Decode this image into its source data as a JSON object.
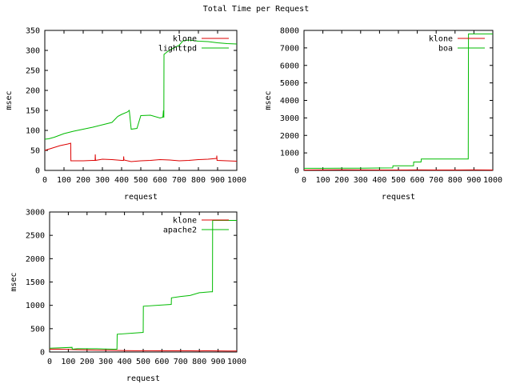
{
  "title": "Total Time per Request",
  "colors": {
    "klone": "#dd0000",
    "other": "#00bb00",
    "frame": "#000000"
  },
  "chart_data": [
    {
      "type": "line",
      "xlabel": "request",
      "ylabel": "msec",
      "xlim": [
        0,
        1000
      ],
      "ylim": [
        0,
        350
      ],
      "xticks": [
        0,
        100,
        200,
        300,
        400,
        500,
        600,
        700,
        800,
        900,
        1000
      ],
      "yticks": [
        0,
        50,
        100,
        150,
        200,
        250,
        300,
        350
      ],
      "legend_position": "top-right",
      "series": [
        {
          "name": "klone",
          "color_key": "klone",
          "x": [
            0,
            20,
            40,
            60,
            80,
            100,
            120,
            135,
            136,
            150,
            200,
            250,
            262,
            263,
            264,
            300,
            350,
            400,
            410,
            411,
            412,
            450,
            500,
            550,
            600,
            650,
            700,
            750,
            800,
            850,
            895,
            896,
            897,
            950,
            1000
          ],
          "y": [
            50,
            53,
            56,
            59,
            62,
            64,
            66,
            68,
            24,
            24,
            24,
            25,
            25,
            40,
            25,
            28,
            27,
            25,
            25,
            35,
            26,
            22,
            24,
            25,
            27,
            26,
            24,
            25,
            27,
            28,
            30,
            37,
            25,
            24,
            23
          ]
        },
        {
          "name": "lighttpd",
          "color_key": "other",
          "x": [
            0,
            20,
            50,
            100,
            150,
            200,
            250,
            300,
            350,
            380,
            400,
            430,
            440,
            450,
            480,
            500,
            550,
            600,
            615,
            618,
            620,
            621,
            650,
            700,
            720,
            750,
            800,
            850,
            900,
            950,
            1000
          ],
          "y": [
            78,
            79,
            83,
            92,
            98,
            103,
            108,
            114,
            120,
            135,
            140,
            146,
            150,
            103,
            105,
            137,
            138,
            131,
            133,
            150,
            132,
            290,
            301,
            313,
            324,
            326,
            323,
            322,
            319,
            317,
            316
          ]
        }
      ]
    },
    {
      "type": "line",
      "xlabel": "request",
      "ylabel": "msec",
      "xlim": [
        0,
        1000
      ],
      "ylim": [
        0,
        8000
      ],
      "xticks": [
        0,
        100,
        200,
        300,
        400,
        500,
        600,
        700,
        800,
        900,
        1000
      ],
      "yticks": [
        0,
        1000,
        2000,
        3000,
        4000,
        5000,
        6000,
        7000,
        8000
      ],
      "legend_position": "top-right",
      "series": [
        {
          "name": "klone",
          "color_key": "klone",
          "x": [
            0,
            100,
            200,
            300,
            400,
            500,
            600,
            700,
            800,
            900,
            1000
          ],
          "y": [
            25,
            28,
            30,
            26,
            24,
            25,
            27,
            25,
            24,
            26,
            25
          ]
        },
        {
          "name": "boa",
          "color_key": "other",
          "x": [
            0,
            100,
            200,
            300,
            400,
            470,
            471,
            580,
            581,
            620,
            621,
            870,
            871,
            1000
          ],
          "y": [
            120,
            120,
            130,
            130,
            135,
            140,
            260,
            260,
            480,
            480,
            650,
            650,
            7800,
            7800
          ]
        }
      ]
    },
    {
      "type": "line",
      "xlabel": "request",
      "ylabel": "msec",
      "xlim": [
        0,
        1000
      ],
      "ylim": [
        0,
        3000
      ],
      "xticks": [
        0,
        100,
        200,
        300,
        400,
        500,
        600,
        700,
        800,
        900,
        1000
      ],
      "yticks": [
        0,
        500,
        1000,
        1500,
        2000,
        2500,
        3000
      ],
      "legend_position": "top-right",
      "series": [
        {
          "name": "klone",
          "color_key": "klone",
          "x": [
            0,
            50,
            100,
            150,
            200,
            250,
            300,
            350,
            400,
            450,
            500,
            550,
            600,
            650,
            700,
            750,
            800,
            850,
            900,
            950,
            1000
          ],
          "y": [
            60,
            62,
            55,
            50,
            45,
            42,
            38,
            35,
            30,
            28,
            27,
            28,
            26,
            25,
            25,
            26,
            24,
            25,
            24,
            23,
            22
          ]
        },
        {
          "name": "apache2",
          "color_key": "other",
          "x": [
            0,
            60,
            120,
            121,
            150,
            200,
            250,
            300,
            340,
            360,
            361,
            500,
            501,
            650,
            651,
            700,
            750,
            800,
            860,
            870,
            871,
            1000
          ],
          "y": [
            80,
            90,
            100,
            60,
            70,
            70,
            70,
            65,
            60,
            60,
            380,
            420,
            980,
            1020,
            1160,
            1190,
            1210,
            1270,
            1290,
            1290,
            2820,
            2820
          ]
        }
      ]
    }
  ]
}
